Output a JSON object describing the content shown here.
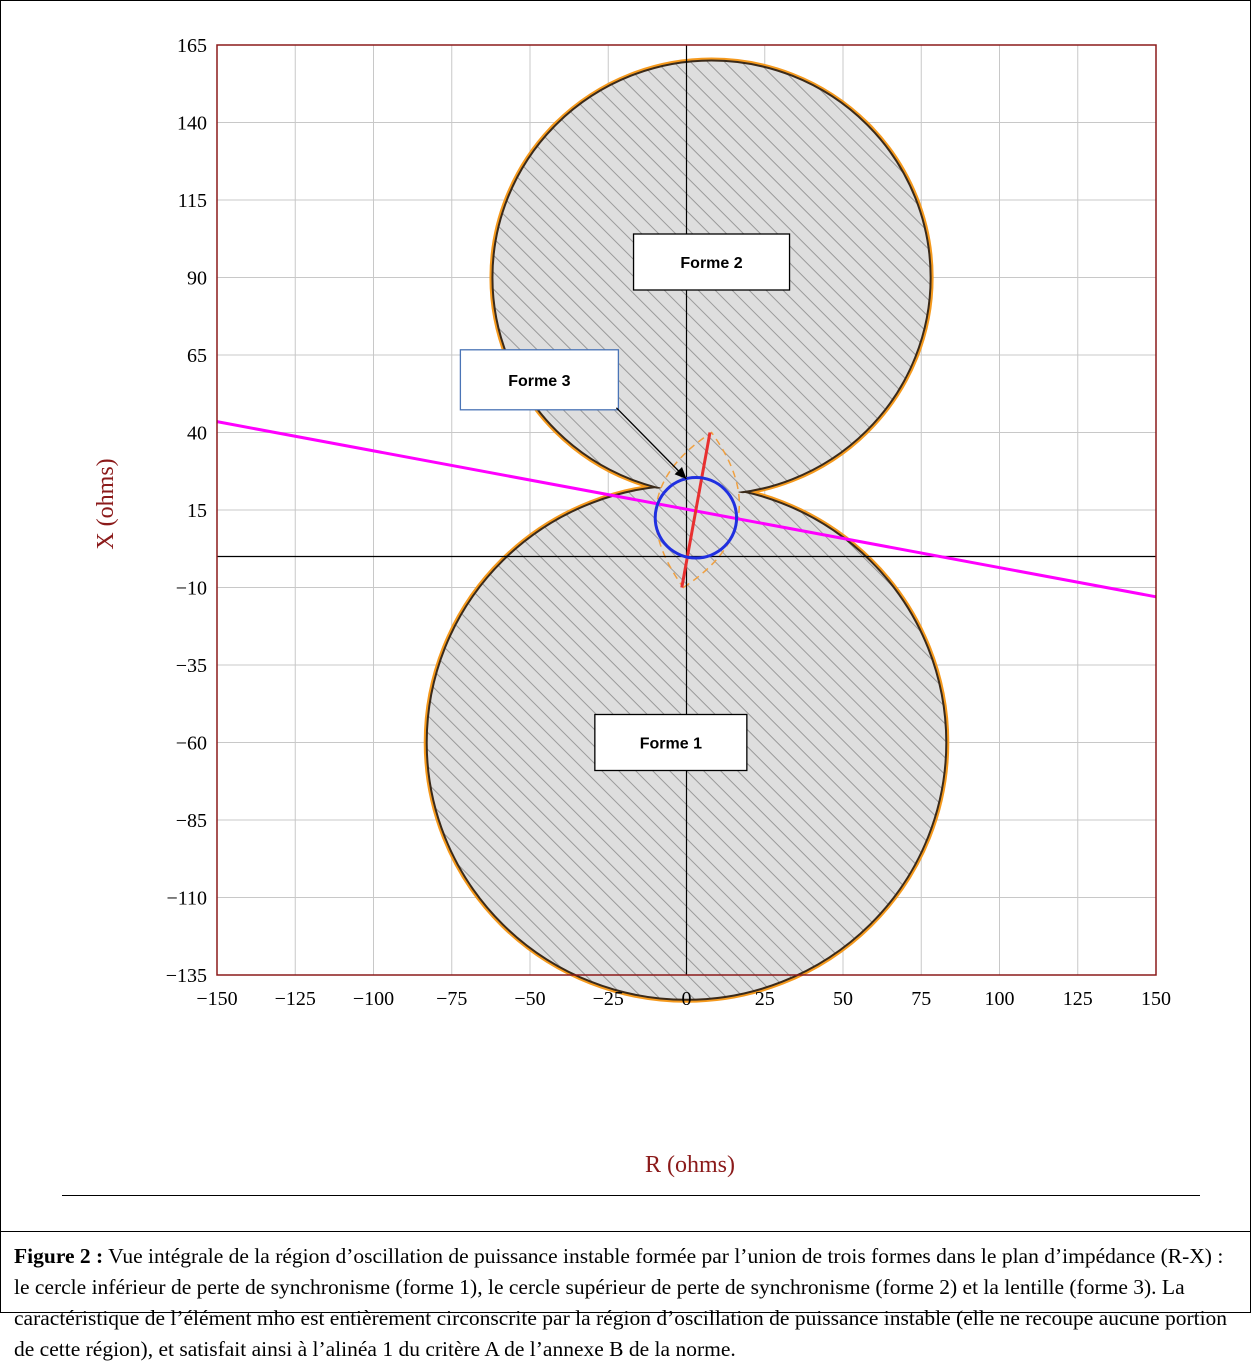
{
  "chart_data": {
    "type": "scatter",
    "xlabel": "R (ohms)",
    "ylabel": "X (ohms)",
    "xlim": [
      -150,
      150
    ],
    "ylim": [
      -135,
      165
    ],
    "x_ticks": [
      -150,
      -125,
      -100,
      -75,
      -50,
      -25,
      0,
      25,
      50,
      75,
      100,
      125,
      150
    ],
    "x_tick_labels": [
      "−150",
      "−125",
      "−100",
      "−75",
      "−50",
      "−25",
      "0",
      "25",
      "50",
      "75",
      "100",
      "125",
      "150"
    ],
    "y_ticks": [
      165,
      140,
      115,
      90,
      65,
      40,
      15,
      -10,
      -35,
      -60,
      -85,
      -110,
      -135
    ],
    "y_tick_labels": [
      "165",
      "140",
      "115",
      "90",
      "65",
      "40",
      "15",
      "−10",
      "−35",
      "−60",
      "−85",
      "−110",
      "−135"
    ],
    "grid": true,
    "shapes": {
      "forme_1_center": [
        0,
        -60
      ],
      "forme_1_radius": 83,
      "forme_2_center": [
        8,
        90
      ],
      "forme_2_radius": 70,
      "mho_center": [
        3,
        12.5
      ],
      "mho_radius": 13,
      "lens_axis": [
        [
          -1,
          -10
        ],
        [
          8,
          40
        ]
      ],
      "lens_width": 12
    },
    "line_points": [
      [
        -150,
        43.5
      ],
      [
        150,
        -13
      ]
    ],
    "segment_points": [
      [
        -1.5,
        -10
      ],
      [
        7.5,
        40
      ]
    ],
    "annotations": [
      {
        "label": "Forme 1",
        "x": -5,
        "y": -60
      },
      {
        "label": "Forme 2",
        "x": 8,
        "y": 95
      },
      {
        "label": "Forme 3",
        "x": -47,
        "y": 57,
        "arrow_to": [
          0,
          25
        ]
      }
    ],
    "colors": {
      "frame": "#8b1a1a",
      "grid": "#c8c8c8",
      "region_outline": "#f59a1e",
      "region_edge": "#3a2a1a",
      "hatch": "#9a9a9a",
      "region_fill": "#dedede",
      "mho_circle": "#2030e0",
      "line": "#ff00ff",
      "segment": "#e83030",
      "lens": "#f0a040",
      "label_frame": "#4a74b6"
    }
  },
  "caption": {
    "label": "Figure 2 :",
    "text": " Vue intégrale de la région d’oscillation de puissance instable formée par l’union de trois formes dans le plan d’impédance (R-X) : le cercle inférieur de perte de synchronisme (forme 1), le cercle supérieur de perte de synchronisme (forme 2) et la lentille (forme 3). La caractéristique de l’élément mho est entièrement circonscrite par la région d’oscillation de puissance instable (elle ne recoupe aucune portion de cette région), et satisfait ainsi à l’alinéa 1 du critère A de l’annexe B de la norme."
  }
}
